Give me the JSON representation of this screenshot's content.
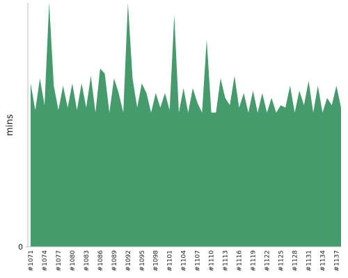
{
  "chart_data": {
    "type": "area",
    "y_label": "mins",
    "color": "#469b6d",
    "categories": [
      "#1071",
      null,
      null,
      "#1074",
      null,
      null,
      "#1077",
      null,
      null,
      "#1080",
      null,
      null,
      "#1083",
      null,
      null,
      "#1086",
      null,
      null,
      "#1089",
      null,
      null,
      "#1092",
      null,
      null,
      "#1095",
      null,
      null,
      "#1098",
      null,
      null,
      "#1101",
      null,
      null,
      "#1104",
      null,
      null,
      "#1107",
      null,
      null,
      "#1110",
      null,
      null,
      "#1113",
      null,
      null,
      "#1116",
      null,
      null,
      "#1119",
      null,
      null,
      "#1122",
      null,
      null,
      "#1125",
      null,
      null,
      "#1128",
      null,
      null,
      "#1131",
      null,
      null,
      "#1134",
      null,
      null,
      "#1137",
      null
    ],
    "values": [
      67,
      56,
      69,
      58,
      100,
      66,
      56,
      66,
      57,
      67,
      56,
      67,
      57,
      70,
      55,
      73,
      71,
      55,
      69,
      63,
      55,
      100,
      69,
      57,
      67,
      63,
      55,
      63,
      57,
      63,
      56,
      95,
      55,
      65,
      55,
      65,
      59,
      55,
      85,
      55,
      55,
      69,
      61,
      58,
      70,
      57,
      63,
      55,
      64,
      55,
      63,
      55,
      61,
      55,
      58,
      57,
      66,
      55,
      64,
      58,
      68,
      55,
      66,
      55,
      61,
      58,
      66,
      57
    ],
    "ylim": [
      0,
      100
    ],
    "yticks": [
      0
    ]
  }
}
